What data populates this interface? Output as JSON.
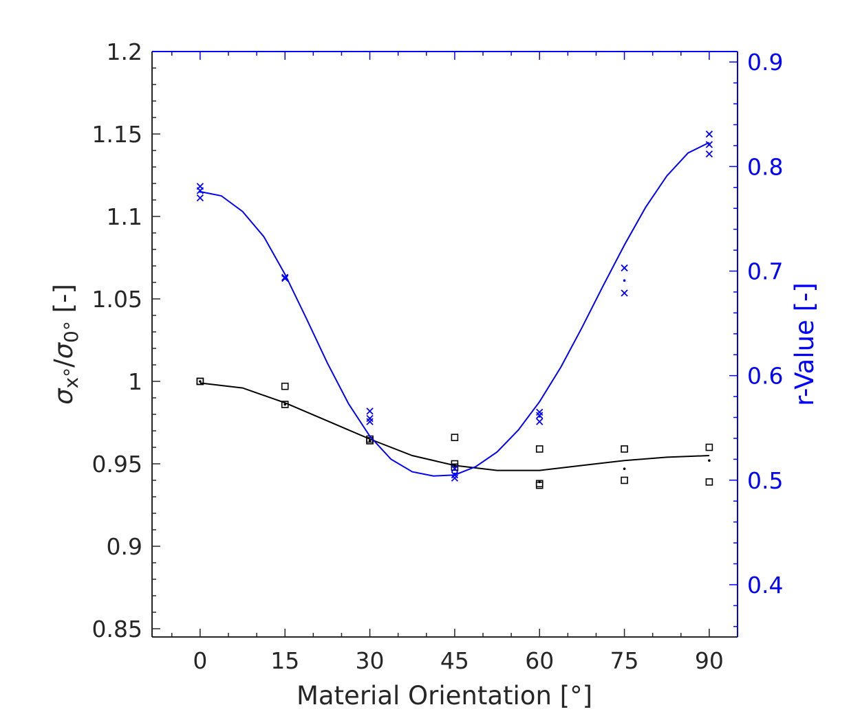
{
  "chart_data": {
    "type": "scatter",
    "title": "",
    "xlabel": "Material Orientation [°]",
    "ylabel_left": "σx°/σ0° [-]",
    "ylabel_right": "r-Value [-]",
    "xlim": [
      -8.5,
      95
    ],
    "ylim_left": [
      0.845,
      1.2
    ],
    "ylim_right": [
      0.35,
      0.91
    ],
    "xticks": [
      "0",
      "15",
      "30",
      "45",
      "60",
      "75",
      "90"
    ],
    "yticks_left": [
      "0.85",
      "0.9",
      "0.95",
      "1",
      "1.05",
      "1.1",
      "1.15",
      "1.2"
    ],
    "yticks_right": [
      "0.4",
      "0.5",
      "0.6",
      "0.7",
      "0.8",
      "0.9"
    ],
    "grid": false,
    "legend": "none",
    "colors": {
      "stress": "#000000",
      "rvalue": "#0000ff",
      "text": "#262626"
    },
    "series": [
      {
        "axis": "left",
        "marker": "square",
        "points": [
          [
            0,
            1.0
          ],
          [
            0,
            1.0
          ],
          [
            15,
            0.997
          ],
          [
            15,
            0.986
          ],
          [
            30,
            0.965
          ],
          [
            30,
            0.964
          ],
          [
            45,
            0.966
          ],
          [
            45,
            0.95
          ],
          [
            45,
            0.948
          ],
          [
            60,
            0.959
          ],
          [
            60,
            0.938
          ],
          [
            60,
            0.937
          ],
          [
            75,
            0.959
          ],
          [
            75,
            0.94
          ],
          [
            90,
            0.96
          ],
          [
            90,
            0.939
          ]
        ]
      },
      {
        "axis": "left",
        "marker": "dot",
        "points": [
          [
            0,
            1.0
          ],
          [
            15,
            0.986
          ],
          [
            30,
            0.964
          ],
          [
            45,
            0.949
          ],
          [
            60,
            0.939
          ],
          [
            75,
            0.947
          ],
          [
            90,
            0.952
          ]
        ]
      },
      {
        "axis": "left",
        "marker": "line",
        "points": [
          [
            0,
            0.999
          ],
          [
            7.5,
            0.996
          ],
          [
            15,
            0.987
          ],
          [
            22.5,
            0.976
          ],
          [
            30,
            0.965
          ],
          [
            37.5,
            0.955
          ],
          [
            45,
            0.949
          ],
          [
            52.5,
            0.946
          ],
          [
            60,
            0.946
          ],
          [
            67.5,
            0.949
          ],
          [
            75,
            0.952
          ],
          [
            82.5,
            0.954
          ],
          [
            90,
            0.955
          ]
        ]
      },
      {
        "axis": "right",
        "marker": "x",
        "points": [
          [
            0,
            0.781
          ],
          [
            0,
            0.777
          ],
          [
            0,
            0.77
          ],
          [
            15,
            0.694
          ],
          [
            15,
            0.693
          ],
          [
            30,
            0.566
          ],
          [
            30,
            0.559
          ],
          [
            30,
            0.556
          ],
          [
            45,
            0.511
          ],
          [
            45,
            0.505
          ],
          [
            45,
            0.502
          ],
          [
            60,
            0.565
          ],
          [
            60,
            0.562
          ],
          [
            60,
            0.556
          ],
          [
            75,
            0.703
          ],
          [
            75,
            0.679
          ],
          [
            90,
            0.831
          ],
          [
            90,
            0.821
          ],
          [
            90,
            0.812
          ]
        ]
      },
      {
        "axis": "right",
        "marker": "dot",
        "points": [
          [
            0,
            0.776
          ],
          [
            15,
            0.693
          ],
          [
            30,
            0.559
          ],
          [
            45,
            0.506
          ],
          [
            60,
            0.561
          ],
          [
            75,
            0.691
          ],
          [
            90,
            0.821
          ]
        ]
      },
      {
        "axis": "right",
        "marker": "line",
        "points": [
          [
            0,
            0.776
          ],
          [
            3.75,
            0.772
          ],
          [
            7.5,
            0.757
          ],
          [
            11.25,
            0.733
          ],
          [
            15,
            0.697
          ],
          [
            18.75,
            0.655
          ],
          [
            22.5,
            0.612
          ],
          [
            26.25,
            0.573
          ],
          [
            30,
            0.542
          ],
          [
            33.75,
            0.52
          ],
          [
            37.5,
            0.508
          ],
          [
            41.25,
            0.504
          ],
          [
            45,
            0.505
          ],
          [
            48.75,
            0.513
          ],
          [
            52.5,
            0.527
          ],
          [
            56.25,
            0.548
          ],
          [
            60,
            0.575
          ],
          [
            63.75,
            0.608
          ],
          [
            67.5,
            0.646
          ],
          [
            71.25,
            0.686
          ],
          [
            75,
            0.725
          ],
          [
            78.75,
            0.761
          ],
          [
            82.5,
            0.791
          ],
          [
            86.25,
            0.813
          ],
          [
            90,
            0.823
          ]
        ]
      }
    ]
  }
}
